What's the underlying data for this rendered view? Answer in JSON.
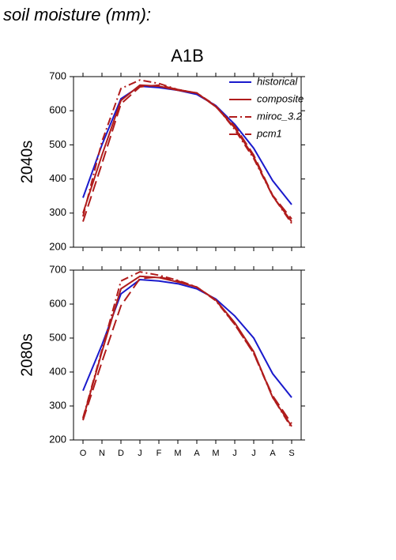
{
  "title": "soil moisture (mm):",
  "chart_data": [
    {
      "type": "line",
      "title": "A1B",
      "ylabel": "2040s",
      "ylim": [
        200,
        700
      ],
      "yticks": [
        200,
        300,
        400,
        500,
        600,
        700
      ],
      "legend": "upper right",
      "series": [
        {
          "name": "historical",
          "color": "#1a1acc",
          "dash": "solid",
          "values": [
            345,
            500,
            635,
            672,
            668,
            660,
            648,
            615,
            560,
            490,
            395,
            325
          ]
        },
        {
          "name": "composite",
          "color": "#b01c1c",
          "dash": "solid",
          "values": [
            300,
            470,
            630,
            675,
            672,
            660,
            652,
            612,
            550,
            465,
            350,
            275
          ]
        },
        {
          "name": "miroc_3.2",
          "color": "#b01c1c",
          "dash": "dashdot",
          "values": [
            290,
            510,
            665,
            690,
            680,
            662,
            652,
            615,
            545,
            460,
            350,
            270
          ]
        },
        {
          "name": "pcm1",
          "color": "#b01c1c",
          "dash": "dashed",
          "values": [
            275,
            445,
            620,
            670,
            675,
            662,
            652,
            612,
            555,
            470,
            352,
            283
          ]
        }
      ]
    },
    {
      "type": "line",
      "ylabel": "2080s",
      "categories": [
        "O",
        "N",
        "D",
        "J",
        "F",
        "M",
        "A",
        "M",
        "J",
        "J",
        "A",
        "S"
      ],
      "ylim": [
        200,
        700
      ],
      "yticks": [
        200,
        300,
        400,
        500,
        600,
        700
      ],
      "series": [
        {
          "color": "#1a1acc",
          "dash": "solid",
          "values": [
            345,
            480,
            630,
            672,
            668,
            660,
            645,
            615,
            565,
            500,
            395,
            325
          ]
        },
        {
          "color": "#b01c1c",
          "dash": "solid",
          "values": [
            262,
            460,
            645,
            682,
            678,
            665,
            650,
            612,
            545,
            460,
            325,
            240
          ]
        },
        {
          "color": "#b01c1c",
          "dash": "dashdot",
          "values": [
            265,
            465,
            668,
            695,
            685,
            670,
            650,
            610,
            540,
            455,
            325,
            235
          ]
        },
        {
          "color": "#b01c1c",
          "dash": "dashed",
          "values": [
            258,
            430,
            595,
            675,
            680,
            668,
            650,
            612,
            540,
            455,
            330,
            248
          ]
        }
      ]
    }
  ]
}
